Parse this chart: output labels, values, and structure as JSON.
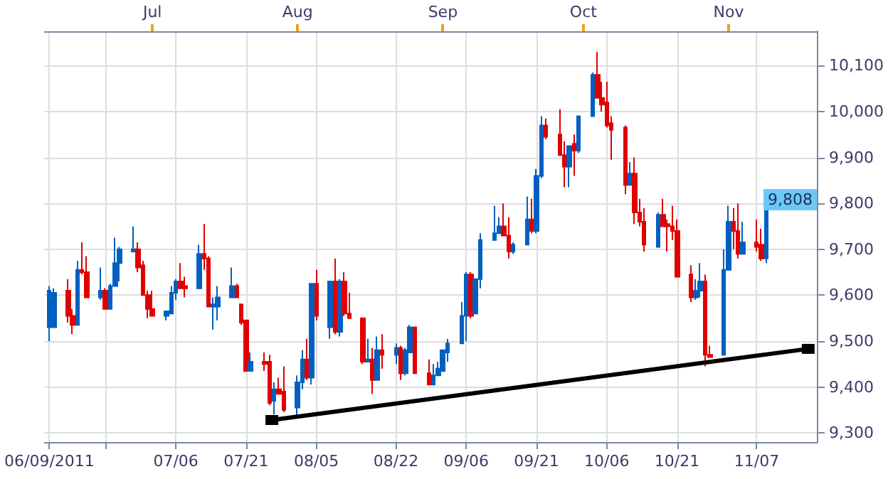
{
  "chart_data": {
    "type": "candlestick",
    "x": [
      "2011-06-09",
      "2011-06-10",
      "2011-06-13",
      "2011-06-14",
      "2011-06-15",
      "2011-06-16",
      "2011-06-17",
      "2011-06-20",
      "2011-06-21",
      "2011-06-22",
      "2011-06-23",
      "2011-06-24",
      "2011-06-27",
      "2011-06-28",
      "2011-06-29",
      "2011-06-30",
      "2011-07-01",
      "2011-07-04",
      "2011-07-05",
      "2011-07-06",
      "2011-07-07",
      "2011-07-08",
      "2011-07-11",
      "2011-07-12",
      "2011-07-13",
      "2011-07-14",
      "2011-07-15",
      "2011-07-18",
      "2011-07-19",
      "2011-07-20",
      "2011-07-21",
      "2011-07-22",
      "2011-07-25",
      "2011-07-26",
      "2011-07-27",
      "2011-07-28",
      "2011-07-29",
      "2011-08-01",
      "2011-08-02",
      "2011-08-03",
      "2011-08-04",
      "2011-08-05",
      "2011-08-08",
      "2011-08-09",
      "2011-08-10",
      "2011-08-11",
      "2011-08-12",
      "2011-08-15",
      "2011-08-16",
      "2011-08-17",
      "2011-08-18",
      "2011-08-19",
      "2011-08-22",
      "2011-08-23",
      "2011-08-24",
      "2011-08-25",
      "2011-08-26",
      "2011-08-29",
      "2011-08-30",
      "2011-08-31",
      "2011-09-01",
      "2011-09-02",
      "2011-09-05",
      "2011-09-06",
      "2011-09-07",
      "2011-09-08",
      "2011-09-09",
      "2011-09-12",
      "2011-09-13",
      "2011-09-14",
      "2011-09-15",
      "2011-09-16",
      "2011-09-19",
      "2011-09-20",
      "2011-09-21",
      "2011-09-22",
      "2011-09-23",
      "2011-09-26",
      "2011-09-27",
      "2011-09-28",
      "2011-09-29",
      "2011-09-30",
      "2011-10-03",
      "2011-10-04",
      "2011-10-05",
      "2011-10-06",
      "2011-10-07",
      "2011-10-10",
      "2011-10-11",
      "2011-10-12",
      "2011-10-13",
      "2011-10-14",
      "2011-10-17",
      "2011-10-18",
      "2011-10-19",
      "2011-10-20",
      "2011-10-21",
      "2011-10-24",
      "2011-10-25",
      "2011-10-26",
      "2011-10-27",
      "2011-10-28",
      "2011-10-31",
      "2011-11-01",
      "2011-11-02",
      "2011-11-03",
      "2011-11-04",
      "2011-11-07",
      "2011-11-08",
      "2011-11-09"
    ],
    "ohlc": [
      [
        9530,
        9620,
        9500,
        9610
      ],
      [
        9530,
        9615,
        9530,
        9605
      ],
      [
        9610,
        9635,
        9540,
        9555
      ],
      [
        9555,
        9570,
        9515,
        9535
      ],
      [
        9535,
        9675,
        9535,
        9655
      ],
      [
        9655,
        9715,
        9645,
        9650
      ],
      [
        9650,
        9685,
        9595,
        9595
      ],
      [
        9595,
        9660,
        9590,
        9610
      ],
      [
        9610,
        9615,
        9570,
        9570
      ],
      [
        9570,
        9625,
        9570,
        9620
      ],
      [
        9620,
        9725,
        9620,
        9670
      ],
      [
        9670,
        9705,
        9630,
        9700
      ],
      [
        9695,
        9750,
        9695,
        9700
      ],
      [
        9700,
        9715,
        9650,
        9660
      ],
      [
        9665,
        9675,
        9600,
        9600
      ],
      [
        9600,
        9610,
        9550,
        9570
      ],
      [
        9570,
        9610,
        9555,
        9555
      ],
      [
        9555,
        9565,
        9545,
        9565
      ],
      [
        9560,
        9620,
        9560,
        9605
      ],
      [
        9605,
        9635,
        9590,
        9630
      ],
      [
        9630,
        9670,
        9615,
        9615
      ],
      [
        9620,
        9640,
        9595,
        9615
      ],
      [
        9615,
        9710,
        9615,
        9690
      ],
      [
        9690,
        9755,
        9655,
        9680
      ],
      [
        9680,
        9685,
        9575,
        9575
      ],
      [
        9575,
        9595,
        9525,
        9580
      ],
      [
        9575,
        9620,
        9545,
        9595
      ],
      [
        9595,
        9660,
        9595,
        9620
      ],
      [
        9620,
        9625,
        9595,
        9595
      ],
      [
        9580,
        9580,
        9535,
        9540
      ],
      [
        9545,
        9545,
        9435,
        9435
      ],
      [
        9435,
        9475,
        9435,
        9455
      ],
      [
        9455,
        9475,
        9435,
        9450
      ],
      [
        9455,
        9470,
        9360,
        9365
      ],
      [
        9370,
        9410,
        9340,
        9395
      ],
      [
        9395,
        9420,
        9385,
        9385
      ],
      [
        9390,
        9445,
        9345,
        9350
      ],
      [
        9355,
        9425,
        9335,
        9410
      ],
      [
        9410,
        9480,
        9395,
        9460
      ],
      [
        9460,
        9505,
        9415,
        9420
      ],
      [
        9420,
        9625,
        9405,
        9625
      ],
      [
        9625,
        9655,
        9545,
        9555
      ],
      [
        9530,
        9630,
        9505,
        9630
      ],
      [
        9630,
        9680,
        9515,
        9520
      ],
      [
        9520,
        9635,
        9510,
        9630
      ],
      [
        9630,
        9650,
        9555,
        9560
      ],
      [
        9560,
        9605,
        9550,
        9550
      ],
      [
        9550,
        9550,
        9450,
        9455
      ],
      [
        9455,
        9505,
        9455,
        9460
      ],
      [
        9460,
        9485,
        9385,
        9415
      ],
      [
        9415,
        9510,
        9415,
        9480
      ],
      [
        9480,
        9515,
        9440,
        9470
      ],
      [
        9470,
        9495,
        9450,
        9485
      ],
      [
        9485,
        9490,
        9415,
        9430
      ],
      [
        9430,
        9485,
        9425,
        9480
      ],
      [
        9475,
        9535,
        9475,
        9530
      ],
      [
        9530,
        9530,
        9430,
        9430
      ],
      [
        9430,
        9460,
        9405,
        9405
      ],
      [
        9405,
        9450,
        9405,
        9425
      ],
      [
        9425,
        9455,
        9425,
        9440
      ],
      [
        9435,
        9480,
        9435,
        9480
      ],
      [
        9475,
        9505,
        9455,
        9495
      ],
      [
        9495,
        9585,
        9495,
        9555
      ],
      [
        9555,
        9650,
        9500,
        9645
      ],
      [
        9645,
        9650,
        9550,
        9555
      ],
      [
        9560,
        9635,
        9560,
        9635
      ],
      [
        9635,
        9735,
        9615,
        9720
      ],
      [
        9720,
        9795,
        9720,
        9735
      ],
      [
        9735,
        9770,
        9735,
        9750
      ],
      [
        9750,
        9800,
        9730,
        9730
      ],
      [
        9730,
        9770,
        9680,
        9695
      ],
      [
        9695,
        9715,
        9690,
        9710
      ],
      [
        9710,
        9815,
        9710,
        9765
      ],
      [
        9765,
        9810,
        9735,
        9740
      ],
      [
        9740,
        9875,
        9735,
        9860
      ],
      [
        9860,
        9990,
        9855,
        9970
      ],
      [
        9970,
        9985,
        9940,
        9945
      ],
      [
        9950,
        10005,
        9905,
        9905
      ],
      [
        9905,
        9935,
        9835,
        9880
      ],
      [
        9880,
        9925,
        9835,
        9925
      ],
      [
        9930,
        9950,
        9860,
        9915
      ],
      [
        9915,
        9990,
        9910,
        9990
      ],
      [
        9990,
        10085,
        9990,
        10080
      ],
      [
        10080,
        10130,
        10030,
        10030
      ],
      [
        10030,
        10065,
        10000,
        10015
      ],
      [
        10020,
        10065,
        9965,
        9970
      ],
      [
        9975,
        9990,
        9895,
        9960
      ],
      [
        9965,
        9970,
        9820,
        9840
      ],
      [
        9840,
        9890,
        9840,
        9865
      ],
      [
        9865,
        9900,
        9755,
        9780
      ],
      [
        9780,
        9810,
        9750,
        9760
      ],
      [
        9760,
        9790,
        9695,
        9710
      ],
      [
        9705,
        9780,
        9705,
        9775
      ],
      [
        9775,
        9810,
        9750,
        9750
      ],
      [
        9755,
        9765,
        9695,
        9750
      ],
      [
        9750,
        9795,
        9720,
        9740
      ],
      [
        9740,
        9765,
        9640,
        9640
      ],
      [
        9645,
        9665,
        9585,
        9595
      ],
      [
        9595,
        9635,
        9590,
        9610
      ],
      [
        9610,
        9670,
        9595,
        9630
      ],
      [
        9630,
        9645,
        9445,
        9470
      ],
      [
        9470,
        9490,
        9465,
        9465
      ],
      [
        9470,
        9700,
        9470,
        9655
      ],
      [
        9655,
        9795,
        9655,
        9760
      ],
      [
        9760,
        9790,
        9700,
        9740
      ],
      [
        9740,
        9800,
        9680,
        9690
      ],
      [
        9690,
        9760,
        9690,
        9715
      ],
      [
        9715,
        9765,
        9695,
        9705
      ],
      [
        9710,
        9745,
        9675,
        9680
      ],
      [
        9680,
        9815,
        9670,
        9808
      ]
    ],
    "colors": [
      "#0060c0",
      "#0060c0",
      "#e00000",
      "#e00000",
      "#0060c0",
      "#e00000",
      "#e00000",
      "#0060c0",
      "#e00000",
      "#0060c0",
      "#0060c0",
      "#0060c0",
      "#0060c0",
      "#e00000",
      "#e00000",
      "#e00000",
      "#e00000",
      "#0060c0",
      "#0060c0",
      "#0060c0",
      "#e00000",
      "#e00000",
      "#0060c0",
      "#e00000",
      "#e00000",
      "#0060c0",
      "#0060c0",
      "#0060c0",
      "#e00000",
      "#e00000",
      "#e00000",
      "#0060c0",
      "#e00000",
      "#e00000",
      "#0060c0",
      "#e00000",
      "#e00000",
      "#0060c0",
      "#0060c0",
      "#e00000",
      "#0060c0",
      "#e00000",
      "#0060c0",
      "#e00000",
      "#0060c0",
      "#e00000",
      "#e00000",
      "#e00000",
      "#0060c0",
      "#e00000",
      "#0060c0",
      "#e00000",
      "#0060c0",
      "#e00000",
      "#0060c0",
      "#0060c0",
      "#e00000",
      "#e00000",
      "#0060c0",
      "#0060c0",
      "#0060c0",
      "#0060c0",
      "#0060c0",
      "#0060c0",
      "#e00000",
      "#0060c0",
      "#0060c0",
      "#0060c0",
      "#0060c0",
      "#e00000",
      "#e00000",
      "#0060c0",
      "#0060c0",
      "#e00000",
      "#0060c0",
      "#0060c0",
      "#e00000",
      "#e00000",
      "#e00000",
      "#0060c0",
      "#e00000",
      "#0060c0",
      "#0060c0",
      "#e00000",
      "#e00000",
      "#e00000",
      "#e00000",
      "#e00000",
      "#0060c0",
      "#e00000",
      "#e00000",
      "#e00000",
      "#0060c0",
      "#e00000",
      "#e00000",
      "#e00000",
      "#e00000",
      "#e00000",
      "#0060c0",
      "#0060c0",
      "#e00000",
      "#e00000",
      "#0060c0",
      "#0060c0",
      "#e00000",
      "#e00000",
      "#0060c0",
      "#e00000",
      "#e00000",
      "#0060c0"
    ],
    "series": [
      {
        "type": "line",
        "x": [
          "2011-07-26T12:00",
          "2011-11-18"
        ],
        "values": [
          9328,
          9483
        ],
        "color": "#000000"
      }
    ],
    "marker": "square",
    "xlim": [
      "2011-06-08",
      "2011-11-20"
    ],
    "xticks": [
      {
        "value": "2011-06-09",
        "label": "06/09/2011"
      },
      {
        "value": "2011-06-21",
        "label": null
      },
      {
        "value": "2011-07-06",
        "label": "07/06"
      },
      {
        "value": "2011-07-21",
        "label": "07/21"
      },
      {
        "value": "2011-08-05",
        "label": "08/05"
      },
      {
        "value": "2011-08-22",
        "label": "08/22"
      },
      {
        "value": "2011-09-06",
        "label": "09/06"
      },
      {
        "value": "2011-09-21",
        "label": "09/21"
      },
      {
        "value": "2011-10-06",
        "label": "10/06"
      },
      {
        "value": "2011-10-21",
        "label": "10/21"
      },
      {
        "value": "2011-11-07",
        "label": "11/07"
      }
    ],
    "x2lim": [
      "2011-06-08",
      "2011-11-20"
    ],
    "x2ticks": [
      {
        "value": "2011-07-01",
        "label": "Jul"
      },
      {
        "value": "2011-08-01",
        "label": "Aug"
      },
      {
        "value": "2011-09-01",
        "label": "Sep"
      },
      {
        "value": "2011-10-01",
        "label": "Oct"
      },
      {
        "value": "2011-11-01",
        "label": "Nov"
      }
    ],
    "ylim": [
      9280,
      10175
    ],
    "yticks": [
      {
        "value": 9300,
        "label": "9,300"
      },
      {
        "value": 9400,
        "label": "9,400"
      },
      {
        "value": 9500,
        "label": "9,500"
      },
      {
        "value": 9600,
        "label": "9,600"
      },
      {
        "value": 9700,
        "label": "9,700"
      },
      {
        "value": 9800,
        "label": "9,800"
      },
      {
        "value": 9900,
        "label": "9,900"
      },
      {
        "value": 10000,
        "label": "10,000"
      },
      {
        "value": 10100,
        "label": "10,100"
      }
    ],
    "grid": true,
    "annotations": [
      {
        "text": "9,808",
        "y": 9808
      }
    ]
  }
}
